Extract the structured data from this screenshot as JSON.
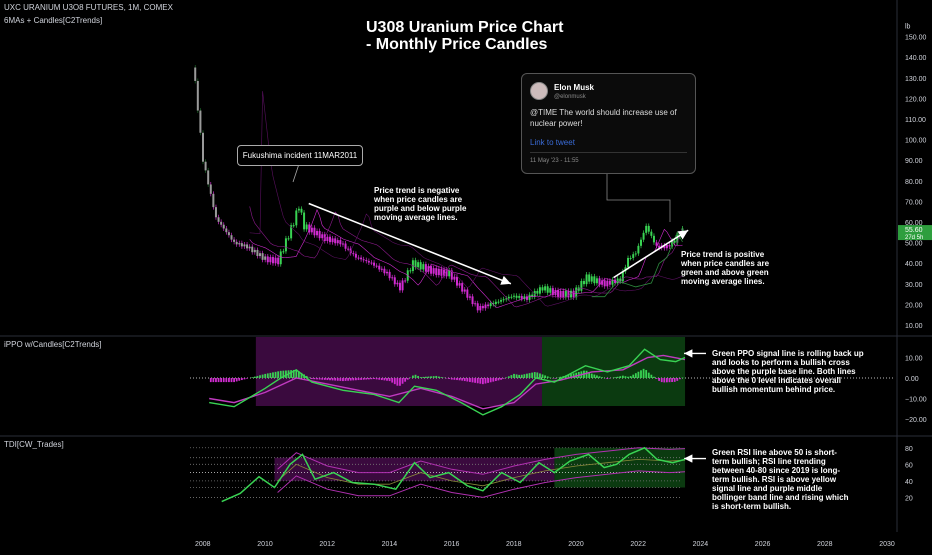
{
  "header": {
    "symbol_line": "UXC URANIUM U3O8 FUTURES, 1M, COMEX",
    "indicator_main": "6MAs + Candles[C2Trends]",
    "indicator_ppo": "iPPO w/Candles[C2Trends]",
    "indicator_tdi": "TDI[CW_Trades]"
  },
  "title_lines": [
    "U308 Uranium Price Chart",
    "- Monthly Price Candles"
  ],
  "tweet": {
    "name": "Elon Musk",
    "handle": "@elonmusk",
    "text": "@TIME The world should increase use of nuclear power!",
    "link": "Link to tweet",
    "date": "11 May '23 - 11:55"
  },
  "annotations": {
    "fukushima": "Fukushima incident 11MAR2011",
    "negative": [
      "Price trend is negative",
      "when price candles are",
      "purple and below purple",
      "moving average lines."
    ],
    "positive": [
      "Price trend is positive",
      "when price candles are",
      "green and above green",
      "moving average lines."
    ],
    "ppo": [
      "Green PPO signal line is rolling back up",
      "and looks to perform a bullish cross",
      "above the purple base line.  Both lines",
      "above the 0 level indicates overall",
      "bullish momentum behind price."
    ],
    "tdi": [
      "Green RSI line above 50 is short-",
      "term bullish; RSI line trending",
      "between 40-80 since 2019 is long-",
      "term bullish.  RSI is above yellow",
      "signal line and purple middle",
      "bollinger band line and rising which",
      "is short-term bullish."
    ]
  },
  "price_tag": {
    "value": "55.60",
    "countdown": "27d 5h",
    "unit": "lb"
  },
  "colors": {
    "up": "#39d353",
    "down": "#d12cd1",
    "bg": "#000000",
    "grid": "#1c1c1c",
    "text": "#d1d4dc",
    "tag": "#2e9e3e"
  },
  "chart_data": [
    {
      "type": "candlestick",
      "title": "U308 Uranium Price Chart - Monthly Price Candles",
      "x_ticks": [
        "2008",
        "2010",
        "2012",
        "2014",
        "2016",
        "2018",
        "2020",
        "2022",
        "2024",
        "2026",
        "2028",
        "2030"
      ],
      "y_unit": "lb",
      "y_ticks": [
        10,
        20,
        30,
        40,
        50,
        60,
        70,
        80,
        90,
        100,
        110,
        120,
        130,
        140,
        150
      ],
      "last_price": 55.6,
      "series_close": [
        {
          "date": "2007-09",
          "value": 140
        },
        {
          "date": "2008-01",
          "value": 90
        },
        {
          "date": "2008-06",
          "value": 62
        },
        {
          "date": "2009-01",
          "value": 50
        },
        {
          "date": "2009-06",
          "value": 48
        },
        {
          "date": "2010-01",
          "value": 42
        },
        {
          "date": "2010-06",
          "value": 41
        },
        {
          "date": "2010-12",
          "value": 60
        },
        {
          "date": "2011-02",
          "value": 68
        },
        {
          "date": "2011-04",
          "value": 58
        },
        {
          "date": "2011-12",
          "value": 52
        },
        {
          "date": "2012-06",
          "value": 50
        },
        {
          "date": "2012-12",
          "value": 43
        },
        {
          "date": "2013-06",
          "value": 40
        },
        {
          "date": "2013-12",
          "value": 35
        },
        {
          "date": "2014-05",
          "value": 28
        },
        {
          "date": "2014-10",
          "value": 40
        },
        {
          "date": "2015-06",
          "value": 36
        },
        {
          "date": "2015-12",
          "value": 35
        },
        {
          "date": "2016-06",
          "value": 26
        },
        {
          "date": "2016-11",
          "value": 18
        },
        {
          "date": "2017-06",
          "value": 21
        },
        {
          "date": "2017-12",
          "value": 24
        },
        {
          "date": "2018-06",
          "value": 23
        },
        {
          "date": "2018-12",
          "value": 28
        },
        {
          "date": "2019-06",
          "value": 25
        },
        {
          "date": "2019-12",
          "value": 25
        },
        {
          "date": "2020-05",
          "value": 33
        },
        {
          "date": "2020-12",
          "value": 30
        },
        {
          "date": "2021-06",
          "value": 32
        },
        {
          "date": "2021-09",
          "value": 42
        },
        {
          "date": "2021-12",
          "value": 45
        },
        {
          "date": "2022-04",
          "value": 58
        },
        {
          "date": "2022-08",
          "value": 48
        },
        {
          "date": "2022-12",
          "value": 48
        },
        {
          "date": "2023-03",
          "value": 51
        },
        {
          "date": "2023-06",
          "value": 55.6
        }
      ]
    },
    {
      "type": "line",
      "title": "iPPO w/Candles[C2Trends]",
      "y_ticks": [
        10.0,
        0.0,
        -10.0,
        -20.0
      ],
      "series": [
        {
          "name": "",
          "color": "green",
          "points": [
            [
              2008.2,
              -12
            ],
            [
              2009,
              -14
            ],
            [
              2010,
              -5
            ],
            [
              2010.5,
              0
            ],
            [
              2011,
              4
            ],
            [
              2011.5,
              -2
            ],
            [
              2012.5,
              -6
            ],
            [
              2013.5,
              -8
            ],
            [
              2014.3,
              -12
            ],
            [
              2014.8,
              -4
            ],
            [
              2015.5,
              -6
            ],
            [
              2016.3,
              -12
            ],
            [
              2017,
              -18
            ],
            [
              2017.6,
              -14
            ],
            [
              2018.2,
              -8
            ],
            [
              2018.7,
              0
            ],
            [
              2019.3,
              -2
            ],
            [
              2020.3,
              6
            ],
            [
              2021,
              3
            ],
            [
              2021.7,
              6
            ],
            [
              2022.2,
              14
            ],
            [
              2022.7,
              9
            ],
            [
              2023.2,
              8
            ],
            [
              2023.5,
              10
            ]
          ]
        },
        {
          "name": "",
          "color": "purple",
          "points": [
            [
              2008.2,
              -10
            ],
            [
              2009,
              -12
            ],
            [
              2010,
              -7
            ],
            [
              2011,
              0
            ],
            [
              2012,
              -3
            ],
            [
              2013,
              -6
            ],
            [
              2014,
              -9
            ],
            [
              2015,
              -5
            ],
            [
              2016,
              -9
            ],
            [
              2017,
              -15
            ],
            [
              2018,
              -12
            ],
            [
              2018.7,
              -3
            ],
            [
              2019.5,
              -1
            ],
            [
              2020.5,
              3
            ],
            [
              2021.5,
              4
            ],
            [
              2022.3,
              10
            ],
            [
              2022.8,
              11
            ],
            [
              2023.5,
              9
            ]
          ]
        }
      ]
    },
    {
      "type": "line",
      "title": "TDI[CW_Trades]",
      "y_ticks": [
        80,
        60,
        40,
        20
      ],
      "series": [
        {
          "name": "",
          "color": "green",
          "points": [
            [
              2008.6,
              15
            ],
            [
              2009.2,
              25
            ],
            [
              2009.8,
              45
            ],
            [
              2010.3,
              32
            ],
            [
              2010.8,
              60
            ],
            [
              2011.2,
              72
            ],
            [
              2011.6,
              42
            ],
            [
              2012.2,
              50
            ],
            [
              2012.8,
              38
            ],
            [
              2013.5,
              36
            ],
            [
              2014.2,
              30
            ],
            [
              2014.8,
              62
            ],
            [
              2015.3,
              44
            ],
            [
              2015.9,
              50
            ],
            [
              2016.5,
              34
            ],
            [
              2017,
              28
            ],
            [
              2017.6,
              50
            ],
            [
              2018.2,
              38
            ],
            [
              2018.8,
              62
            ],
            [
              2019.3,
              50
            ],
            [
              2019.8,
              64
            ],
            [
              2020.4,
              72
            ],
            [
              2020.9,
              56
            ],
            [
              2021.3,
              60
            ],
            [
              2021.7,
              72
            ],
            [
              2022.2,
              80
            ],
            [
              2022.6,
              66
            ],
            [
              2023.1,
              62
            ],
            [
              2023.5,
              66
            ]
          ]
        },
        {
          "name": "",
          "color": "purple",
          "points": [
            [
              2010.4,
              40
            ],
            [
              2011,
              60
            ],
            [
              2012,
              44
            ],
            [
              2013,
              36
            ],
            [
              2014,
              36
            ],
            [
              2015,
              50
            ],
            [
              2016,
              40
            ],
            [
              2017,
              34
            ],
            [
              2018,
              44
            ],
            [
              2019,
              52
            ],
            [
              2020,
              58
            ],
            [
              2021,
              62
            ],
            [
              2022,
              66
            ],
            [
              2023,
              64
            ],
            [
              2023.5,
              65
            ]
          ]
        }
      ],
      "levels": [
        80,
        68,
        60,
        50,
        40,
        32,
        20
      ]
    }
  ]
}
